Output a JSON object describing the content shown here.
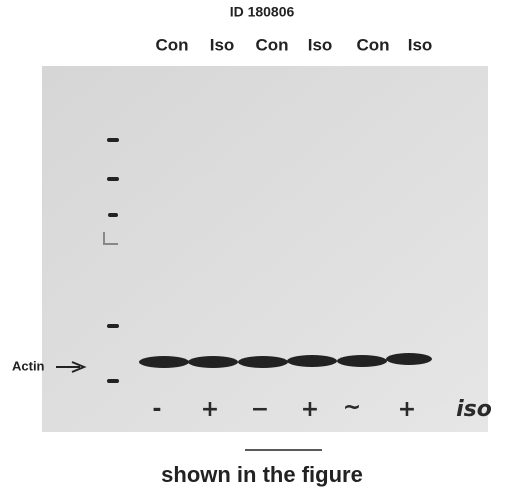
{
  "figure": {
    "id_label": "ID 180806",
    "lanes": [
      "Con",
      "Iso",
      "Con",
      "Iso",
      "Con",
      "Iso"
    ],
    "band_label": "Actin",
    "handwritten": [
      "-",
      "+",
      "−",
      "+",
      "~",
      "+",
      "iso"
    ],
    "caption": "shown in the figure"
  }
}
